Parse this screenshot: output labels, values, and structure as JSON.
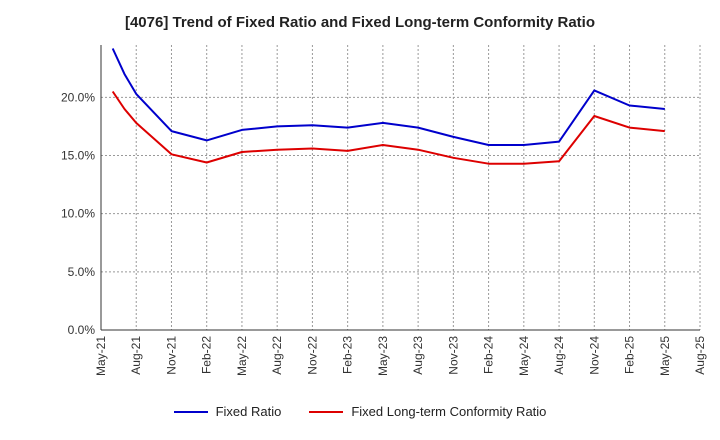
{
  "chart_data": {
    "type": "line",
    "title": "[4076]  Trend of Fixed Ratio and Fixed Long-term Conformity Ratio",
    "xlabel": "",
    "ylabel": "",
    "x_ticks": [
      "May-21",
      "Aug-21",
      "Nov-21",
      "Feb-22",
      "May-22",
      "Aug-22",
      "Nov-22",
      "Feb-23",
      "May-23",
      "Aug-23",
      "Nov-23",
      "Feb-24",
      "May-24",
      "Aug-24",
      "Nov-24",
      "Feb-25",
      "May-25",
      "Aug-25"
    ],
    "y_ticks": [
      "0.0%",
      "5.0%",
      "10.0%",
      "15.0%",
      "20.0%"
    ],
    "ylim": [
      0,
      24.5
    ],
    "grid": true,
    "legend_position": "bottom",
    "x": [
      "2021-06",
      "2021-07",
      "2021-08",
      "2021-11",
      "2022-02",
      "2022-05",
      "2022-08",
      "2022-11",
      "2023-02",
      "2023-05",
      "2023-08",
      "2023-11",
      "2024-02",
      "2024-05",
      "2024-08",
      "2024-11",
      "2025-02",
      "2025-05"
    ],
    "series": [
      {
        "name": "Fixed Ratio",
        "color": "#0000cc",
        "values": [
          24.2,
          22.0,
          20.3,
          17.1,
          16.3,
          17.2,
          17.5,
          17.6,
          17.4,
          17.8,
          17.4,
          16.6,
          15.9,
          15.9,
          16.2,
          20.6,
          19.3,
          19.0
        ]
      },
      {
        "name": "Fixed Long-term Conformity Ratio",
        "color": "#dd0000",
        "values": [
          20.5,
          19.0,
          17.8,
          15.1,
          14.4,
          15.3,
          15.5,
          15.6,
          15.4,
          15.9,
          15.5,
          14.8,
          14.3,
          14.3,
          14.5,
          18.4,
          17.4,
          17.1
        ]
      }
    ]
  }
}
